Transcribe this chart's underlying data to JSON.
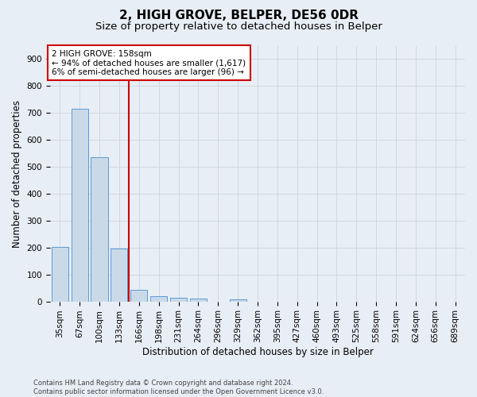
{
  "title": "2, HIGH GROVE, BELPER, DE56 0DR",
  "subtitle": "Size of property relative to detached houses in Belper",
  "xlabel": "Distribution of detached houses by size in Belper",
  "ylabel": "Number of detached properties",
  "categories": [
    "35sqm",
    "67sqm",
    "100sqm",
    "133sqm",
    "166sqm",
    "198sqm",
    "231sqm",
    "264sqm",
    "296sqm",
    "329sqm",
    "362sqm",
    "395sqm",
    "427sqm",
    "460sqm",
    "493sqm",
    "525sqm",
    "558sqm",
    "591sqm",
    "624sqm",
    "656sqm",
    "689sqm"
  ],
  "values": [
    203,
    715,
    535,
    197,
    44,
    19,
    14,
    12,
    0,
    9,
    0,
    0,
    0,
    0,
    0,
    0,
    0,
    0,
    0,
    0,
    0
  ],
  "bar_color": "#c9d9e8",
  "bar_edge_color": "#5b9bd5",
  "vline_color": "#cc0000",
  "vline_index": 4,
  "annotation_line1": "2 HIGH GROVE: 158sqm",
  "annotation_line2": "← 94% of detached houses are smaller (1,617)",
  "annotation_line3": "6% of semi-detached houses are larger (96) →",
  "annotation_box_color": "#cc0000",
  "ylim": [
    0,
    950
  ],
  "yticks": [
    0,
    100,
    200,
    300,
    400,
    500,
    600,
    700,
    800,
    900
  ],
  "grid_color": "#d0d8e4",
  "background_color": "#e8eef5",
  "footnote_line1": "Contains HM Land Registry data © Crown copyright and database right 2024.",
  "footnote_line2": "Contains public sector information licensed under the Open Government Licence v3.0.",
  "title_fontsize": 11,
  "subtitle_fontsize": 9.5,
  "tick_fontsize": 7.5,
  "label_fontsize": 8.5,
  "annot_fontsize": 7.5,
  "footnote_fontsize": 6
}
